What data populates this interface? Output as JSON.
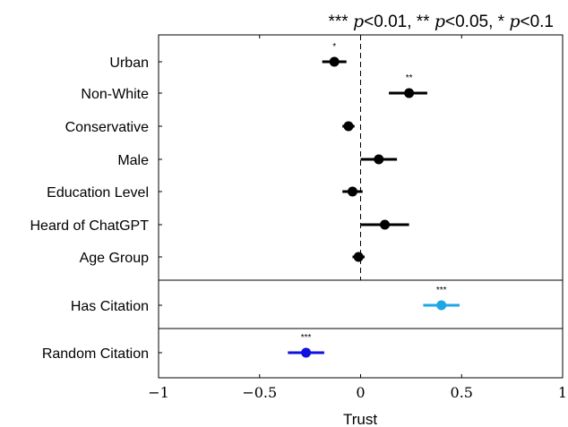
{
  "chart_data": {
    "type": "scatter",
    "subtype": "coefficient-plot",
    "title_parts": [
      "*** ",
      "p",
      "<0.01, ** ",
      "p",
      "<0.05, * ",
      "p",
      "<0.1"
    ],
    "xlabel": "Trust",
    "ylabel": "",
    "xlim": [
      -1,
      1
    ],
    "x_ticks": [
      -1,
      -0.5,
      0,
      0.5,
      1
    ],
    "x_tick_labels": [
      "−1",
      "−0.5",
      "0",
      "0.5",
      "1"
    ],
    "reference_line_x": 0,
    "grid": false,
    "panels": [
      {
        "rows": [
          {
            "label": "Urban",
            "estimate": -0.13,
            "ci": [
              -0.19,
              -0.07
            ],
            "sig": "*",
            "color": "#000000"
          },
          {
            "label": "Non-White",
            "estimate": 0.24,
            "ci": [
              0.14,
              0.33
            ],
            "sig": "**",
            "color": "#000000"
          },
          {
            "label": "Conservative",
            "estimate": -0.06,
            "ci": [
              -0.09,
              -0.03
            ],
            "sig": "",
            "color": "#000000"
          },
          {
            "label": "Male",
            "estimate": 0.09,
            "ci": [
              0.0,
              0.18
            ],
            "sig": "",
            "color": "#000000"
          },
          {
            "label": "Education Level",
            "estimate": -0.04,
            "ci": [
              -0.09,
              0.01
            ],
            "sig": "",
            "color": "#000000"
          },
          {
            "label": "Heard of ChatGPT",
            "estimate": 0.12,
            "ci": [
              0.0,
              0.24
            ],
            "sig": "",
            "color": "#000000"
          },
          {
            "label": "Age Group",
            "estimate": -0.01,
            "ci": [
              -0.04,
              0.02
            ],
            "sig": "",
            "color": "#000000"
          }
        ]
      },
      {
        "rows": [
          {
            "label": "Has Citation",
            "estimate": 0.4,
            "ci": [
              0.31,
              0.49
            ],
            "sig": "***",
            "color": "#1ea7e4"
          }
        ]
      },
      {
        "rows": [
          {
            "label": "Random Citation",
            "estimate": -0.27,
            "ci": [
              -0.36,
              -0.18
            ],
            "sig": "***",
            "color": "#1010e0"
          }
        ]
      }
    ]
  }
}
